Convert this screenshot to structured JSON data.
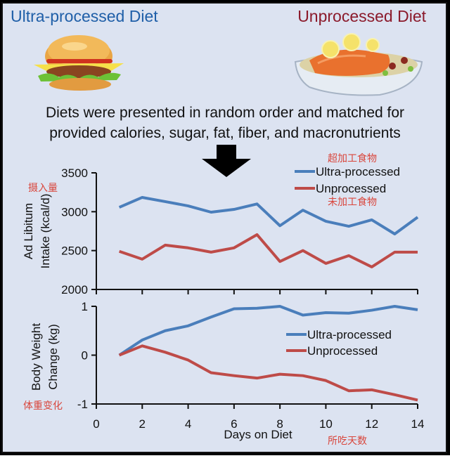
{
  "header": {
    "left_title": "Ultra-processed Diet",
    "right_title": "Unprocessed Diet",
    "left_image": "hamburger-icon",
    "right_image": "salmon-pasta-plate-icon",
    "subtitle_line1": "Diets were presented in random order and matched for",
    "subtitle_line2": "provided calories, sugar, fat, fiber, and macronutrients",
    "arrow": "down-arrow-icon"
  },
  "colors": {
    "ultra": "#4a7ebb",
    "unprocessed": "#be4b48",
    "background": "#dce3f1",
    "left_title": "#1f5fa8",
    "right_title": "#8b1a2b",
    "annotation": "#d9463c"
  },
  "annotations": {
    "ultra_cn": "超加工食物",
    "unprocessed_cn": "未加工食物",
    "intake_cn": "摄入量",
    "weight_cn": "体重变化",
    "days_cn": "所吃天数"
  },
  "chart_data": [
    {
      "type": "line",
      "title": "",
      "xlabel": "",
      "ylabel_line1": "Ad Libitum",
      "ylabel_line2": "Intake (kcal/d)",
      "ylim": [
        2000,
        3500
      ],
      "yticks": [
        "2000",
        "2500",
        "3000",
        "3500"
      ],
      "xlim": [
        0,
        14
      ],
      "x": [
        1,
        2,
        3,
        4,
        5,
        6,
        7,
        8,
        9,
        10,
        11,
        12,
        13,
        14
      ],
      "legend_position": "top-right",
      "series": [
        {
          "name": "Ultra-processed",
          "values": [
            3057,
            3184,
            3130,
            3075,
            2994,
            3030,
            3100,
            2820,
            3020,
            2877,
            2813,
            2895,
            2714,
            2930
          ]
        },
        {
          "name": "Unprocessed",
          "values": [
            2490,
            2390,
            2570,
            2535,
            2480,
            2535,
            2705,
            2360,
            2500,
            2335,
            2435,
            2290,
            2480,
            2480
          ]
        }
      ]
    },
    {
      "type": "line",
      "title": "",
      "xlabel": "Days on Diet",
      "ylabel_line1": "Body Weight",
      "ylabel_line2": "Change (kg)",
      "ylim": [
        -1,
        1
      ],
      "yticks": [
        "-1",
        "0",
        "1"
      ],
      "xlim": [
        0,
        14
      ],
      "xticks": [
        "0",
        "2",
        "4",
        "6",
        "8",
        "10",
        "12",
        "14"
      ],
      "x": [
        1,
        2,
        3,
        4,
        5,
        6,
        7,
        8,
        9,
        10,
        11,
        12,
        13,
        14
      ],
      "legend_position": "center-right",
      "series": [
        {
          "name": "Ultra-processed",
          "values": [
            0,
            0.31,
            0.5,
            0.6,
            0.78,
            0.95,
            0.96,
            1.0,
            0.82,
            0.87,
            0.86,
            0.92,
            1.0,
            0.93
          ]
        },
        {
          "name": "Unprocessed",
          "values": [
            0,
            0.19,
            0.06,
            -0.1,
            -0.36,
            -0.42,
            -0.47,
            -0.39,
            -0.42,
            -0.52,
            -0.73,
            -0.71,
            -0.81,
            -0.92
          ]
        }
      ]
    }
  ]
}
